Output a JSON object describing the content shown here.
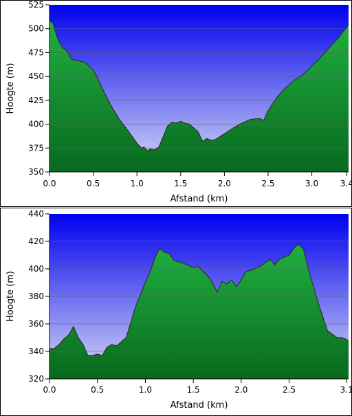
{
  "colors": {
    "sky_top": "#0000ee",
    "sky_bottom": "#d8dcf4",
    "fill_top": "#20b040",
    "fill_bottom": "#086a1e",
    "outline": "#303030",
    "grid": "#606070"
  },
  "chart_data": [
    {
      "type": "area",
      "xlabel": "Afstand  (km)",
      "ylabel": "Hoogte (m)",
      "xlim": [
        0,
        3.42
      ],
      "ylim": [
        350,
        525
      ],
      "xticks": [
        0,
        0.5,
        1,
        1.5,
        2,
        2.5,
        3,
        3.4
      ],
      "xtick_labels": [
        "0.0",
        "0.5",
        "1.0",
        "1.5",
        "2.0",
        "2.5",
        "3.0",
        "3.4"
      ],
      "yticks": [
        350,
        375,
        400,
        425,
        450,
        475,
        500,
        525
      ],
      "ytick_labels": [
        "350",
        "375",
        "400",
        "425",
        "450",
        "475",
        "500",
        "525"
      ],
      "grid": true,
      "series": [
        {
          "x": [
            0,
            0.04,
            0.08,
            0.1,
            0.15,
            0.2,
            0.25,
            0.3,
            0.4,
            0.5,
            0.55,
            0.6,
            0.7,
            0.8,
            0.9,
            1.0,
            1.05,
            1.08,
            1.12,
            1.15,
            1.2,
            1.25,
            1.3,
            1.35,
            1.4,
            1.45,
            1.5,
            1.55,
            1.6,
            1.7,
            1.75,
            1.8,
            1.85,
            1.9,
            2.0,
            2.1,
            2.2,
            2.3,
            2.4,
            2.45,
            2.5,
            2.6,
            2.7,
            2.8,
            2.9,
            3.0,
            3.1,
            3.2,
            3.3,
            3.42
          ],
          "y": [
            508,
            506,
            493,
            488,
            480,
            477,
            468,
            467,
            465,
            457,
            448,
            438,
            420,
            405,
            393,
            380,
            375,
            376,
            372,
            374,
            373,
            376,
            387,
            398,
            402,
            401,
            403,
            401,
            400,
            392,
            382,
            385,
            383,
            384,
            390,
            396,
            401,
            405,
            406,
            404,
            414,
            428,
            438,
            446,
            452,
            461,
            470,
            480,
            490,
            504
          ]
        }
      ]
    },
    {
      "type": "area",
      "xlabel": "Afstand  (km)",
      "ylabel": "Hoogte (m)",
      "xlim": [
        0,
        3.12
      ],
      "ylim": [
        320,
        440
      ],
      "xticks": [
        0,
        0.5,
        1,
        1.5,
        2,
        2.5,
        3.1
      ],
      "xtick_labels": [
        "0.0",
        "0.5",
        "1.0",
        "1.5",
        "2.0",
        "2.5",
        "3.1"
      ],
      "yticks": [
        320,
        340,
        360,
        380,
        400,
        420,
        440
      ],
      "ytick_labels": [
        "320",
        "340",
        "360",
        "380",
        "400",
        "420",
        "440"
      ],
      "grid": true,
      "series": [
        {
          "x": [
            0,
            0.05,
            0.1,
            0.15,
            0.2,
            0.25,
            0.3,
            0.35,
            0.4,
            0.45,
            0.5,
            0.55,
            0.6,
            0.65,
            0.7,
            0.8,
            0.9,
            1.0,
            1.05,
            1.1,
            1.15,
            1.2,
            1.25,
            1.3,
            1.4,
            1.5,
            1.55,
            1.6,
            1.65,
            1.7,
            1.75,
            1.8,
            1.85,
            1.9,
            1.95,
            2.0,
            2.05,
            2.1,
            2.2,
            2.3,
            2.35,
            2.4,
            2.5,
            2.55,
            2.6,
            2.65,
            2.7,
            2.8,
            2.9,
            3.0,
            3.05,
            3.12
          ],
          "y": [
            342,
            342,
            345,
            349,
            352,
            358,
            350,
            345,
            337,
            337,
            338,
            337,
            343,
            345,
            344,
            350,
            373,
            390,
            398,
            408,
            415,
            412,
            411,
            406,
            404,
            401,
            402,
            398,
            395,
            390,
            383,
            391,
            389,
            392,
            387,
            392,
            398,
            399,
            402,
            407,
            403,
            407,
            410,
            415,
            418,
            414,
            400,
            376,
            355,
            350,
            350,
            348
          ]
        }
      ]
    }
  ]
}
